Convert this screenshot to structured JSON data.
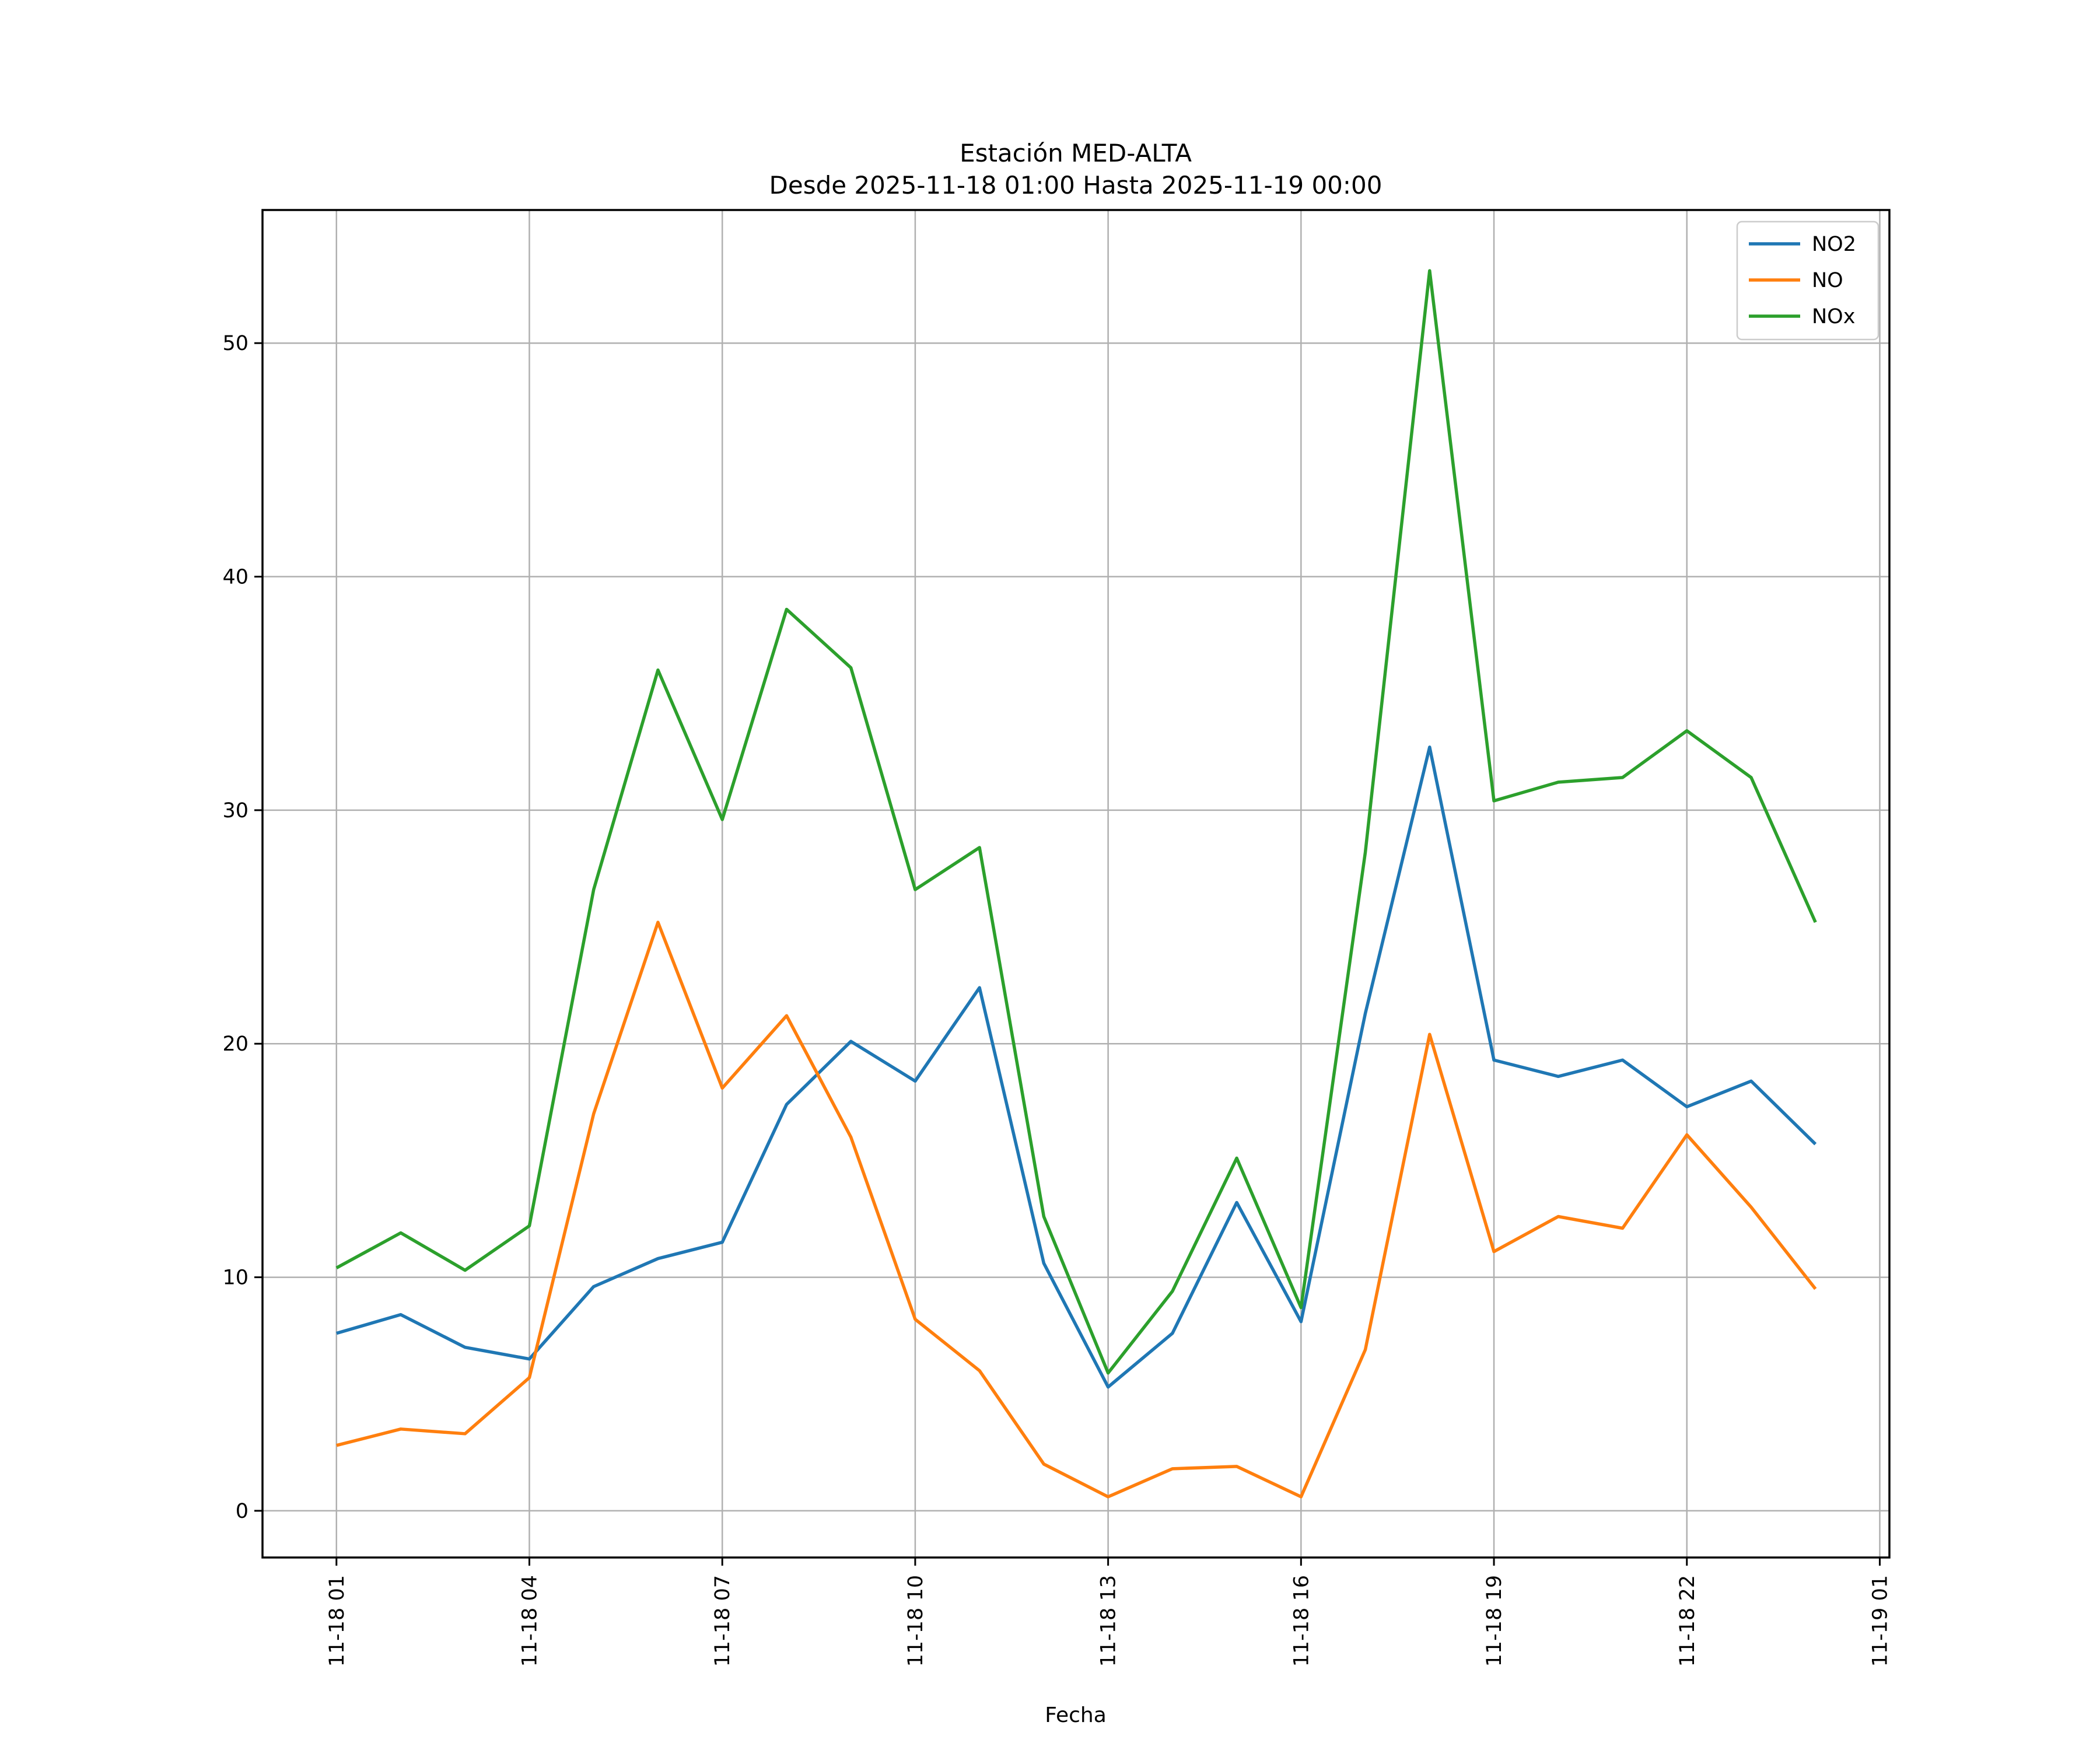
{
  "chart_data": {
    "type": "line",
    "title": "Estación MED-ALTA",
    "subtitle": "Desde 2025-11-18 01:00 Hasta 2025-11-19 00:00",
    "xlabel": "Fecha",
    "ylabel": "",
    "station": "MED-ALTA",
    "time_start": "2025-11-18 01:00",
    "time_end": "2025-11-19 00:00",
    "x_hours_offset": [
      0,
      1,
      2,
      3,
      4,
      5,
      6,
      7,
      8,
      9,
      10,
      11,
      12,
      13,
      14,
      15,
      16,
      17,
      18,
      19,
      20,
      21,
      22,
      23
    ],
    "x_tick_positions": [
      0,
      3,
      6,
      9,
      12,
      15,
      18,
      21,
      24
    ],
    "x_tick_labels": [
      "11-18 01",
      "11-18 04",
      "11-18 07",
      "11-18 10",
      "11-18 13",
      "11-18 16",
      "11-18 19",
      "11-18 22",
      "11-19 01"
    ],
    "y_ticks": [
      0,
      10,
      20,
      30,
      40,
      50
    ],
    "xlim": [
      -1.15,
      24.15
    ],
    "ylim": [
      -2.0,
      55.7
    ],
    "grid": true,
    "legend_position": "upper right",
    "series": [
      {
        "name": "NO2",
        "color": "#1f77b4",
        "values": [
          7.6,
          8.4,
          7.0,
          6.5,
          9.6,
          10.8,
          11.5,
          17.4,
          20.1,
          18.4,
          22.4,
          10.6,
          5.3,
          7.6,
          13.2,
          8.1,
          21.3,
          32.7,
          19.3,
          18.6,
          19.3,
          17.3,
          18.4,
          15.7
        ]
      },
      {
        "name": "NO",
        "color": "#ff7f0e",
        "values": [
          2.8,
          3.5,
          3.3,
          5.7,
          17.0,
          25.2,
          18.1,
          21.2,
          16.0,
          8.2,
          6.0,
          2.0,
          0.6,
          1.8,
          1.9,
          0.6,
          6.9,
          20.4,
          11.1,
          12.6,
          12.1,
          16.1,
          13.0,
          9.5
        ]
      },
      {
        "name": "NOx",
        "color": "#2ca02c",
        "values": [
          10.4,
          11.9,
          10.3,
          12.2,
          26.6,
          36.0,
          29.6,
          38.6,
          36.1,
          26.6,
          28.4,
          12.6,
          5.9,
          9.4,
          15.1,
          8.7,
          28.2,
          53.1,
          30.4,
          31.2,
          31.4,
          33.4,
          31.4,
          25.2
        ]
      }
    ],
    "colors": {
      "grid": "#b0b0b0",
      "spine": "#000000",
      "legend_border": "#cccccc",
      "background": "#ffffff"
    }
  }
}
